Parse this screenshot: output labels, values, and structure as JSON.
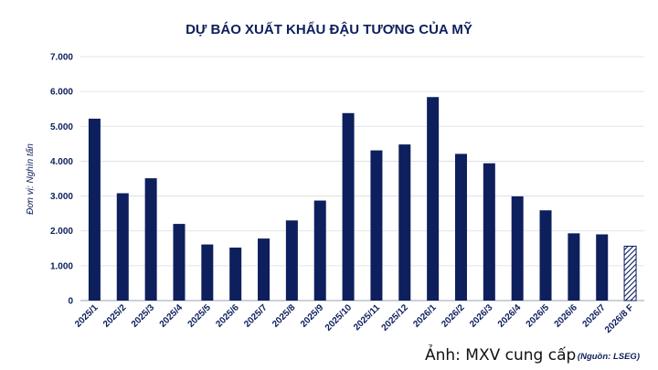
{
  "chart_data": {
    "type": "bar",
    "title": "DỰ BÁO XUẤT KHẨU ĐẬU TƯƠNG CỦA MỸ",
    "ylabel": "Đơn vị: Nghìn tấn",
    "xlabel": "",
    "ylim": [
      0,
      7000
    ],
    "yticks": [
      "0",
      "1.000",
      "2.000",
      "3.000",
      "4.000",
      "5.000",
      "6.000",
      "7.000"
    ],
    "grid": true,
    "categories": [
      "2025/1",
      "2025/2",
      "2025/3",
      "2025/4",
      "2025/5",
      "2025/6",
      "2025/7",
      "2025/8",
      "2025/9",
      "2025/10",
      "2025/11",
      "2025/12",
      "2026/1",
      "2026/2",
      "2026/3",
      "2026/4",
      "2026/5",
      "2026/6",
      "2026/7",
      "2026/8 F"
    ],
    "values": [
      5220,
      3080,
      3510,
      2200,
      1610,
      1520,
      1780,
      2300,
      2870,
      5380,
      4310,
      4480,
      5840,
      4210,
      3940,
      2990,
      2590,
      1930,
      1900,
      1560
    ],
    "forecast_last": true,
    "bar_color": "#0d1f5c",
    "source_note": "(Nguồn: LSEG)",
    "credit": "Ảnh: MXV cung cấp"
  }
}
